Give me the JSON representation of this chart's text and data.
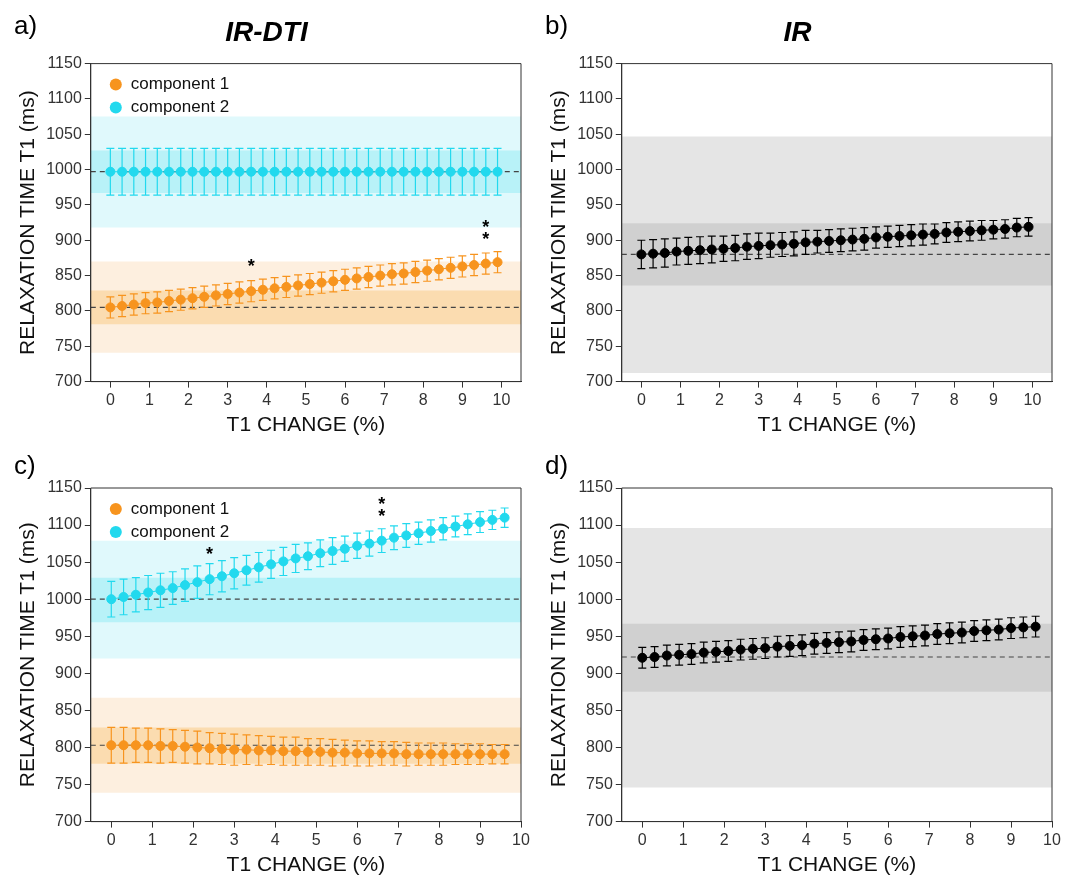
{
  "chart_data": [
    {
      "type": "line",
      "title": "IR-DTI",
      "annotations": [
        "a)",
        {
          "text": "*",
          "x": 3.6,
          "y": 828
        },
        {
          "text": "**",
          "x": 9.6,
          "y": 867
        }
      ],
      "xlabel": "T1 CHANGE (%)",
      "ylabel": "RELAXATION TIME T1 (ms)",
      "xlim": [
        -0.5,
        10.5
      ],
      "xticks": [
        0,
        1,
        2,
        3,
        4,
        5,
        6,
        7,
        8,
        9,
        10
      ],
      "ylim": [
        700,
        1150
      ],
      "yticks": [
        700,
        750,
        800,
        850,
        900,
        950,
        1000,
        1050,
        1100,
        1150
      ],
      "legend": "top left",
      "marker": "circle",
      "grid": false,
      "x": [
        0,
        0.3,
        0.6,
        0.9,
        1.2,
        1.5,
        1.8,
        2.1,
        2.4,
        2.7,
        3,
        3.3,
        3.6,
        3.9,
        4.2,
        4.5,
        4.8,
        5.1,
        5.4,
        5.7,
        6,
        6.3,
        6.6,
        6.9,
        7.2,
        7.5,
        7.8,
        8.1,
        8.4,
        8.7,
        9,
        9.3,
        9.6,
        9.9
      ],
      "bands": [
        {
          "axis": "y",
          "from": 741,
          "to": 870,
          "color": "#fdefdf"
        },
        {
          "axis": "y",
          "from": 781,
          "to": 829,
          "color": "#fbdcb0"
        },
        {
          "axis": "y",
          "from": 918,
          "to": 1075,
          "color": "#e0f9fc"
        },
        {
          "axis": "y",
          "from": 967,
          "to": 1027,
          "color": "#b8f2f8"
        }
      ],
      "ref_lines": [
        {
          "axis": "y",
          "value": 805,
          "line_style": "dashed",
          "color": "#444444"
        },
        {
          "axis": "y",
          "value": 997,
          "line_style": "dashed",
          "color": "#444444"
        }
      ],
      "series": [
        {
          "name": "component 1",
          "color": "#f7941e",
          "values": [
            805,
            807,
            809,
            811,
            812,
            814,
            816,
            818,
            820,
            822,
            824,
            826,
            828,
            830,
            832,
            834,
            836,
            838,
            840,
            842,
            844,
            846,
            848,
            850,
            852,
            853,
            855,
            857,
            859,
            861,
            863,
            865,
            867,
            869
          ],
          "errors": [
            15,
            15,
            15,
            15,
            15,
            15,
            15,
            15,
            15,
            15,
            15,
            15,
            15,
            15,
            15,
            15,
            15,
            15,
            15,
            15,
            15,
            15,
            15,
            15,
            15,
            15,
            15,
            15,
            15,
            15,
            15,
            15,
            15,
            15
          ]
        },
        {
          "name": "component 2",
          "color": "#22d9ee",
          "values": [
            997,
            997,
            997,
            997,
            997,
            997,
            997,
            997,
            997,
            997,
            997,
            997,
            997,
            997,
            997,
            997,
            997,
            997,
            997,
            997,
            997,
            997,
            997,
            997,
            997,
            997,
            997,
            997,
            997,
            997,
            997,
            997,
            997,
            997
          ],
          "errors": [
            33,
            33,
            33,
            33,
            33,
            33,
            33,
            33,
            33,
            33,
            33,
            33,
            33,
            33,
            33,
            33,
            33,
            33,
            33,
            33,
            33,
            33,
            33,
            33,
            33,
            33,
            33,
            33,
            33,
            33,
            33,
            33,
            33,
            33
          ]
        }
      ]
    },
    {
      "type": "line",
      "title": "IR",
      "annotations": [
        "b)"
      ],
      "xlabel": "T1 CHANGE (%)",
      "ylabel": "RELAXATION TIME T1 (ms)",
      "xlim": [
        -0.5,
        10.5
      ],
      "xticks": [
        0,
        1,
        2,
        3,
        4,
        5,
        6,
        7,
        8,
        9,
        10
      ],
      "ylim": [
        700,
        1150
      ],
      "yticks": [
        700,
        750,
        800,
        850,
        900,
        950,
        1000,
        1050,
        1100,
        1150
      ],
      "marker": "circle",
      "grid": false,
      "x": [
        0,
        0.3,
        0.6,
        0.9,
        1.2,
        1.5,
        1.8,
        2.1,
        2.4,
        2.7,
        3,
        3.3,
        3.6,
        3.9,
        4.2,
        4.5,
        4.8,
        5.1,
        5.4,
        5.7,
        6,
        6.3,
        6.6,
        6.9,
        7.2,
        7.5,
        7.8,
        8.1,
        8.4,
        8.7,
        9,
        9.3,
        9.6,
        9.9
      ],
      "bands": [
        {
          "axis": "y",
          "from": 712,
          "to": 1047,
          "color": "#e5e5e5"
        },
        {
          "axis": "y",
          "from": 836,
          "to": 924,
          "color": "#d0d0d0"
        }
      ],
      "ref_lines": [
        {
          "axis": "y",
          "value": 880,
          "line_style": "dashed",
          "color": "#444444"
        }
      ],
      "series": [
        {
          "color": "#000000",
          "values": [
            880,
            881,
            882,
            884,
            885,
            886,
            887,
            888,
            889,
            891,
            892,
            893,
            894,
            895,
            897,
            898,
            899,
            900,
            901,
            902,
            904,
            905,
            906,
            907,
            908,
            909,
            911,
            912,
            913,
            914,
            915,
            916,
            918,
            919
          ],
          "errors": [
            20,
            20,
            20,
            19,
            19,
            19,
            19,
            18,
            18,
            18,
            18,
            17,
            17,
            17,
            17,
            16,
            16,
            16,
            16,
            16,
            15,
            15,
            15,
            15,
            15,
            14,
            14,
            14,
            14,
            14,
            13,
            13,
            13,
            13
          ]
        }
      ]
    },
    {
      "type": "line",
      "annotations": [
        "c)",
        {
          "text": "*",
          "x": 2.4,
          "y": 1027
        },
        {
          "text": "**",
          "x": 6.6,
          "y": 1079
        }
      ],
      "xlabel": "T1 CHANGE (%)",
      "ylabel": "RELAXATION TIME T1 (ms)",
      "xlim": [
        -0.5,
        10
      ],
      "xticks": [
        0,
        1,
        2,
        3,
        4,
        5,
        6,
        7,
        8,
        9,
        10
      ],
      "ylim": [
        700,
        1150
      ],
      "yticks": [
        700,
        750,
        800,
        850,
        900,
        950,
        1000,
        1050,
        1100,
        1150
      ],
      "legend": "top left",
      "marker": "circle",
      "grid": false,
      "x": [
        0,
        0.3,
        0.6,
        0.9,
        1.2,
        1.5,
        1.8,
        2.1,
        2.4,
        2.7,
        3,
        3.3,
        3.6,
        3.9,
        4.2,
        4.5,
        4.8,
        5.1,
        5.4,
        5.7,
        6,
        6.3,
        6.6,
        6.9,
        7.2,
        7.5,
        7.8,
        8.1,
        8.4,
        8.7,
        9,
        9.3,
        9.6
      ],
      "bands": [
        {
          "axis": "y",
          "from": 739,
          "to": 867,
          "color": "#fdefdf"
        },
        {
          "axis": "y",
          "from": 778,
          "to": 827,
          "color": "#fbdcb0"
        },
        {
          "axis": "y",
          "from": 920,
          "to": 1079,
          "color": "#e0f9fc"
        },
        {
          "axis": "y",
          "from": 969,
          "to": 1029,
          "color": "#b8f2f8"
        }
      ],
      "ref_lines": [
        {
          "axis": "y",
          "value": 803,
          "line_style": "dashed",
          "color": "#444444"
        },
        {
          "axis": "y",
          "value": 1000,
          "line_style": "dashed",
          "color": "#444444"
        }
      ],
      "series": [
        {
          "name": "component 1",
          "color": "#f7941e",
          "values": [
            803,
            803,
            803,
            803,
            802,
            802,
            801,
            800,
            799,
            798,
            797,
            797,
            796,
            796,
            795,
            795,
            794,
            794,
            793,
            793,
            792,
            792,
            792,
            792,
            791,
            791,
            791,
            791,
            791,
            791,
            791,
            791,
            791
          ],
          "errors": [
            24,
            24,
            23,
            23,
            23,
            22,
            22,
            22,
            21,
            21,
            21,
            20,
            20,
            19,
            19,
            19,
            18,
            18,
            18,
            17,
            17,
            17,
            16,
            16,
            16,
            15,
            15,
            15,
            14,
            14,
            14,
            13,
            13
          ]
        },
        {
          "name": "component 2",
          "color": "#22d9ee",
          "values": [
            1000,
            1003,
            1006,
            1009,
            1012,
            1015,
            1019,
            1023,
            1027,
            1031,
            1035,
            1039,
            1043,
            1047,
            1051,
            1055,
            1058,
            1062,
            1065,
            1068,
            1072,
            1075,
            1079,
            1083,
            1086,
            1089,
            1092,
            1095,
            1098,
            1101,
            1104,
            1107,
            1110
          ],
          "errors": [
            24,
            24,
            23,
            23,
            23,
            22,
            22,
            22,
            21,
            21,
            21,
            20,
            20,
            19,
            19,
            19,
            18,
            18,
            18,
            17,
            17,
            17,
            16,
            16,
            16,
            15,
            15,
            15,
            14,
            14,
            14,
            13,
            13
          ]
        }
      ]
    },
    {
      "type": "line",
      "annotations": [
        "d)"
      ],
      "xlabel": "T1 CHANGE (%)",
      "ylabel": "RELAXATION TIME T1 (ms)",
      "xlim": [
        -0.5,
        10
      ],
      "xticks": [
        0,
        1,
        2,
        3,
        4,
        5,
        6,
        7,
        8,
        9,
        10
      ],
      "ylim": [
        700,
        1150
      ],
      "yticks": [
        700,
        750,
        800,
        850,
        900,
        950,
        1000,
        1050,
        1100,
        1150
      ],
      "marker": "circle",
      "grid": false,
      "x": [
        0,
        0.3,
        0.6,
        0.9,
        1.2,
        1.5,
        1.8,
        2.1,
        2.4,
        2.7,
        3,
        3.3,
        3.6,
        3.9,
        4.2,
        4.5,
        4.8,
        5.1,
        5.4,
        5.7,
        6,
        6.3,
        6.6,
        6.9,
        7.2,
        7.5,
        7.8,
        8.1,
        8.4,
        8.7,
        9,
        9.3,
        9.6
      ],
      "bands": [
        {
          "axis": "y",
          "from": 746,
          "to": 1096,
          "color": "#e5e5e5"
        },
        {
          "axis": "y",
          "from": 875,
          "to": 967,
          "color": "#d0d0d0"
        }
      ],
      "ref_lines": [
        {
          "axis": "y",
          "value": 922,
          "line_style": "dashed",
          "color": "#444444"
        }
      ],
      "series": [
        {
          "color": "#000000",
          "values": [
            921,
            922,
            924,
            925,
            926,
            928,
            929,
            930,
            932,
            933,
            934,
            936,
            937,
            938,
            940,
            941,
            942,
            943,
            945,
            946,
            947,
            949,
            950,
            951,
            953,
            954,
            955,
            957,
            958,
            959,
            961,
            962,
            963
          ],
          "errors": [
            14,
            14,
            14,
            14,
            14,
            14,
            14,
            14,
            14,
            14,
            14,
            14,
            14,
            14,
            14,
            14,
            14,
            14,
            14,
            14,
            14,
            14,
            14,
            14,
            14,
            14,
            14,
            14,
            14,
            14,
            14,
            14,
            14
          ]
        }
      ]
    }
  ]
}
